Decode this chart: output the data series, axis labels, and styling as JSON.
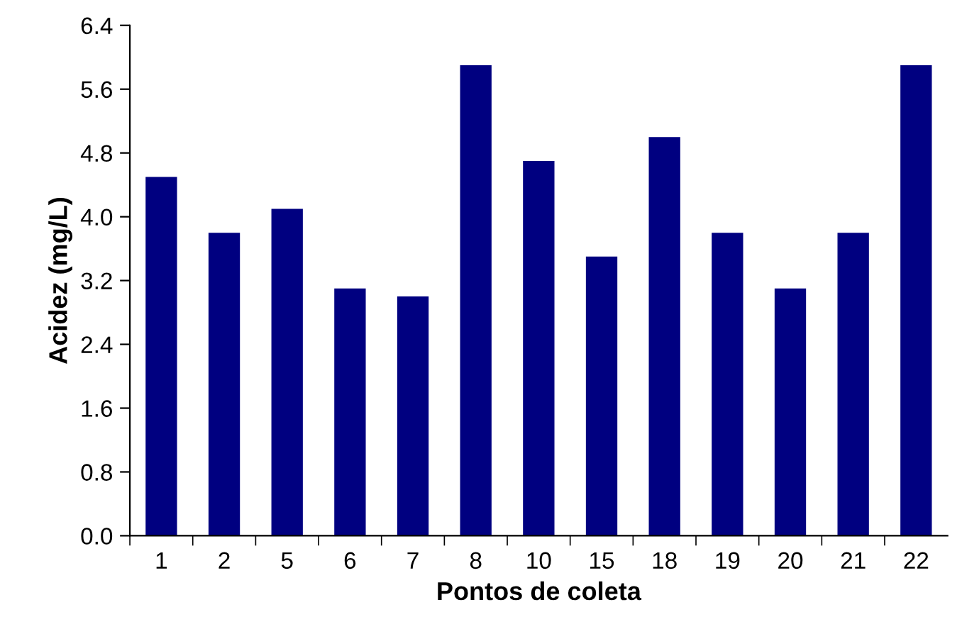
{
  "chart_data": {
    "type": "bar",
    "xlabel": "Pontos de coleta",
    "ylabel": "Acidez (mg/L)",
    "categories": [
      "1",
      "2",
      "5",
      "6",
      "7",
      "8",
      "10",
      "15",
      "18",
      "19",
      "20",
      "21",
      "22"
    ],
    "values": [
      4.5,
      3.8,
      4.1,
      3.1,
      3.0,
      5.9,
      4.7,
      3.5,
      5.0,
      3.8,
      3.1,
      3.8,
      5.9
    ],
    "color": "#000080",
    "ylim": [
      0,
      6.4
    ],
    "yticks": [
      {
        "value": 0,
        "label": "0.0"
      },
      0.8,
      1.6,
      2.4,
      3.2,
      {
        "value": 4.0,
        "label": "4.0"
      },
      4.8,
      5.6,
      6.4
    ],
    "grid": false,
    "legend": false
  }
}
